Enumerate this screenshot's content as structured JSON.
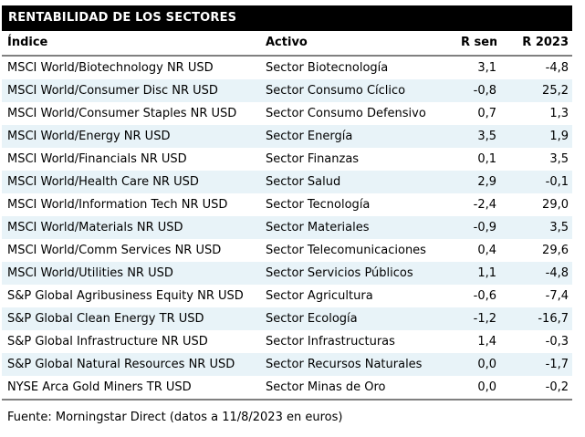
{
  "title": "RENTABILIDAD DE LOS SECTORES",
  "colors": {
    "banner_bg": "#000000",
    "banner_text": "#ffffff",
    "row_stripe": "#e8f3f8",
    "rule": "#808080",
    "body_text": "#000000"
  },
  "table": {
    "columns": [
      "Índice",
      "Activo",
      "R sem",
      "R 2023"
    ],
    "rows": [
      [
        "MSCI World/Biotechnology NR USD",
        "Sector Biotecnología",
        "3,1",
        "-4,8"
      ],
      [
        "MSCI World/Consumer Disc NR USD",
        "Sector Consumo Cíclico",
        "-0,8",
        "25,2"
      ],
      [
        "MSCI World/Consumer Staples NR USD",
        "Sector Consumo Defensivo",
        "0,7",
        "1,3"
      ],
      [
        "MSCI World/Energy NR USD",
        "Sector Energía",
        "3,5",
        "1,9"
      ],
      [
        "MSCI World/Financials NR USD",
        "Sector Finanzas",
        "0,1",
        "3,5"
      ],
      [
        "MSCI World/Health Care NR USD",
        "Sector Salud",
        "2,9",
        "-0,1"
      ],
      [
        "MSCI World/Information Tech NR USD",
        "Sector Tecnología",
        "-2,4",
        "29,0"
      ],
      [
        "MSCI World/Materials NR USD",
        "Sector Materiales",
        "-0,9",
        "3,5"
      ],
      [
        "MSCI World/Comm Services NR USD",
        "Sector Telecomunicaciones",
        "0,4",
        "29,6"
      ],
      [
        "MSCI World/Utilities NR USD",
        "Sector Servicios Públicos",
        "1,1",
        "-4,8"
      ],
      [
        "S&P Global Agribusiness Equity NR USD",
        "Sector Agricultura",
        "-0,6",
        "-7,4"
      ],
      [
        "S&P Global Clean Energy TR USD",
        "Sector Ecología",
        "-1,2",
        "-16,7"
      ],
      [
        "S&P Global Infrastructure NR USD",
        "Sector Infrastructuras",
        "1,4",
        "-0,3"
      ],
      [
        "S&P Global Natural Resources NR USD",
        "Sector Recursos Naturales",
        "0,0",
        "-1,7"
      ],
      [
        "NYSE Arca Gold Miners TR USD",
        "Sector Minas de Oro",
        "0,0",
        "-0,2"
      ]
    ]
  },
  "footer": "Fuente: Morningstar Direct (datos a 11/8/2023 en euros)"
}
